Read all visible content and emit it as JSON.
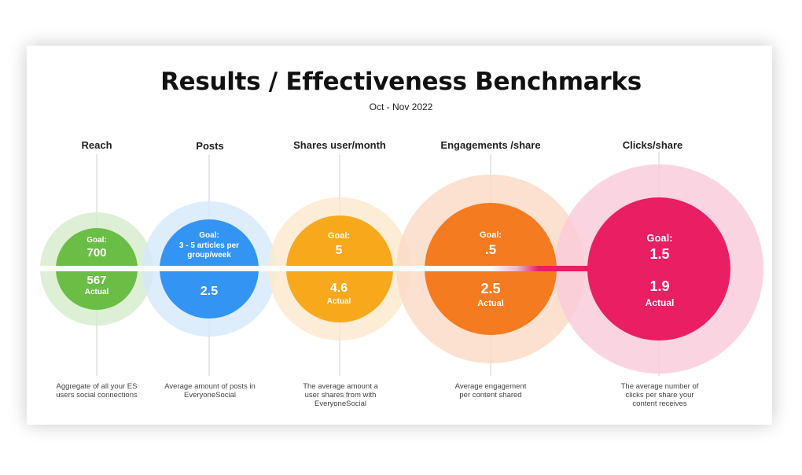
{
  "title": "Results / Effectiveness Benchmarks",
  "subtitle": "Oct - Nov 2022",
  "chart_data": {
    "type": "bubble-benchmarks",
    "metrics": [
      {
        "id": "reach",
        "label": "Reach",
        "goal_label": "Goal:",
        "goal": "700",
        "actual": "567",
        "actual_label": "Actual",
        "description": "Aggregate of all your ES users social connections",
        "color": "#6abd45",
        "ring_color": "#d4ebcb"
      },
      {
        "id": "posts",
        "label": "Posts",
        "goal_label": "Goal:",
        "goal": "3 - 5 articles per group/week",
        "actual": "2.5",
        "actual_label": "",
        "description": "Average amount of posts in EveryoneSocial",
        "color": "#3394f3",
        "ring_color": "#d6e9fb"
      },
      {
        "id": "shares",
        "label": "Shares user/month",
        "goal_label": "Goal:",
        "goal": "5",
        "actual": "4.6",
        "actual_label": "Actual",
        "description": "The average amount a user shares from with EveryoneSocial",
        "color": "#f7a81b",
        "ring_color": "#fde8cc"
      },
      {
        "id": "engagements",
        "label": "Engagements /share",
        "goal_label": "Goal:",
        "goal": ".5",
        "actual": "2.5",
        "actual_label": "Actual",
        "description": "Average engagement per content shared",
        "color": "#f47b20",
        "ring_color": "#fbd9c4"
      },
      {
        "id": "clicks",
        "label": "Clicks/share",
        "goal_label": "Goal:",
        "goal": "1.5",
        "actual": "1.9",
        "actual_label": "Actual",
        "description": "The average number of clicks per share your content receives",
        "color": "#e91e63",
        "ring_color": "#f9cad9"
      }
    ]
  }
}
